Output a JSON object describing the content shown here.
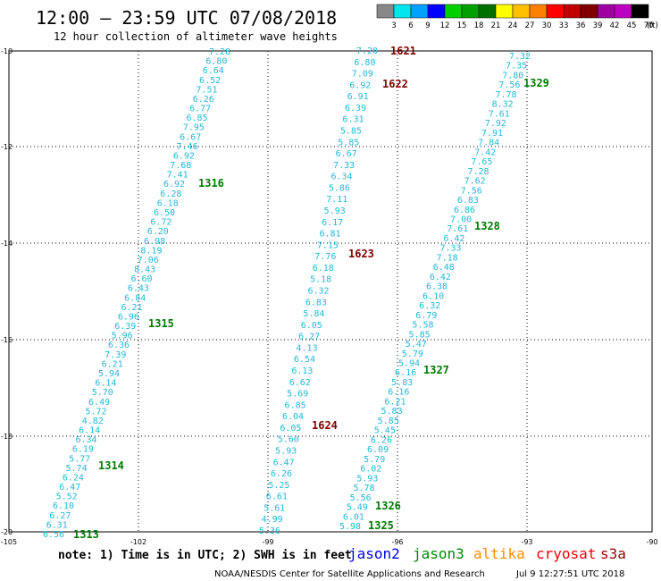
{
  "header": {
    "title": "12:00 – 23:59 UTC 07/08/2018",
    "subtitle": "12 hour collection of altimeter wave heights"
  },
  "legend": {
    "labels": [
      "3",
      "6",
      "9",
      "12",
      "15",
      "18",
      "21",
      "24",
      "27",
      "30",
      "33",
      "36",
      "39",
      "42",
      "45",
      "70",
      "(ft)"
    ],
    "colors": [
      "#888888",
      "#00e5ee",
      "#00a0ff",
      "#0000ff",
      "#00d000",
      "#00a000",
      "#007000",
      "#ffff00",
      "#ffc000",
      "#ff8000",
      "#ff0000",
      "#c00000",
      "#800000",
      "#a000a0",
      "#c000c0",
      "#000000"
    ]
  },
  "axes": {
    "x_ticks": [
      "-105",
      "-102",
      "-99",
      "-96",
      "-93",
      "-90"
    ],
    "y_ticks": [
      "-10",
      "-12",
      "-14",
      "-16",
      "-18",
      "-20"
    ]
  },
  "passes": [
    {
      "label": "1313",
      "color": "#007a00"
    },
    {
      "label": "1314",
      "color": "#007a00"
    },
    {
      "label": "1315",
      "color": "#007a00"
    },
    {
      "label": "1316",
      "color": "#007a00"
    },
    {
      "label": "1621",
      "color": "#800000"
    },
    {
      "label": "1622",
      "color": "#800000"
    },
    {
      "label": "1623",
      "color": "#800000"
    },
    {
      "label": "1624",
      "color": "#800000"
    },
    {
      "label": "1325",
      "color": "#007a00"
    },
    {
      "label": "1326",
      "color": "#007a00"
    },
    {
      "label": "1327",
      "color": "#007a00"
    },
    {
      "label": "1328",
      "color": "#007a00"
    },
    {
      "label": "1329",
      "color": "#007a00"
    }
  ],
  "tracks": [
    {
      "name": "track-a",
      "values": [
        "7.28",
        "6.80",
        "6.64",
        "6.52",
        "7.51",
        "6.26",
        "6.77",
        "6.85",
        "7.95",
        "6.67",
        "7.46",
        "6.92",
        "7.68",
        "7.41",
        "6.92",
        "6.28",
        "6.18",
        "6.50",
        "6.72",
        "6.20",
        "6.98",
        "8.19",
        "7.06",
        "8.43",
        "6.60",
        "6.43",
        "6.84",
        "6.21",
        "6.96",
        "6.39",
        "5.96",
        "6.36",
        "7.39",
        "6.21",
        "5.94",
        "6.14",
        "5.70",
        "6.49",
        "5.72",
        "4.82",
        "6.14",
        "6.34",
        "6.19",
        "5.77",
        "5.74",
        "6.24",
        "6.47",
        "5.52",
        "6.10",
        "6.27",
        "6.31",
        "6.56"
      ]
    },
    {
      "name": "track-b",
      "values": [
        "7.28",
        "6.80",
        "7.09",
        "6.92",
        "6.91",
        "6.39",
        "6.31",
        "5.85",
        "5.85",
        "6.67",
        "7.33",
        "6.34",
        "5.86",
        "7.11",
        "5.93",
        "6.17",
        "6.81",
        "7.15",
        "7.76",
        "6.18",
        "5.18",
        "6.32",
        "6.83",
        "5.84",
        "6.05",
        "6.27",
        "4.13",
        "6.54",
        "6.13",
        "6.62",
        "5.69",
        "6.85",
        "6.04",
        "6.05",
        "5.60",
        "5.93",
        "6.47",
        "6.26",
        "5.25",
        "6.61",
        "5.61",
        "4.99",
        "5.36"
      ]
    },
    {
      "name": "track-c",
      "values": [
        "7.32",
        "7.35",
        "7.80",
        "7.56",
        "7.78",
        "8.32",
        "7.61",
        "7.92",
        "7.91",
        "7.84",
        "7.42",
        "7.65",
        "7.28",
        "7.62",
        "7.56",
        "6.83",
        "6.86",
        "7.00",
        "7.61",
        "6.42",
        "7.33",
        "7.18",
        "6.48",
        "6.42",
        "6.38",
        "6.10",
        "6.32",
        "6.79",
        "5.58",
        "5.85",
        "5.47",
        "5.79",
        "5.94",
        "6.16",
        "5.83",
        "6.16",
        "6.21",
        "5.83",
        "5.85",
        "5.45",
        "6.26",
        "6.09",
        "5.79",
        "6.02",
        "5.93",
        "5.78",
        "5.56",
        "5.49",
        "6.01",
        "5.98"
      ]
    }
  ],
  "footer": {
    "note": "note: 1) Time is in UTC; 2) SWH is in feet",
    "satellites": [
      {
        "label": "jason2",
        "color": "#0000ee"
      },
      {
        "label": "jason3",
        "color": "#008800"
      },
      {
        "label": "altika",
        "color": "#ff8c00"
      },
      {
        "label": "cryosat",
        "color": "#ee0000"
      },
      {
        "label": "s3a",
        "color": "#990000"
      }
    ],
    "credit": "NOAA/NESDIS Center for Satellite Applications and Research",
    "timestamp": "Jul  9 12:27:51 UTC 2018"
  }
}
